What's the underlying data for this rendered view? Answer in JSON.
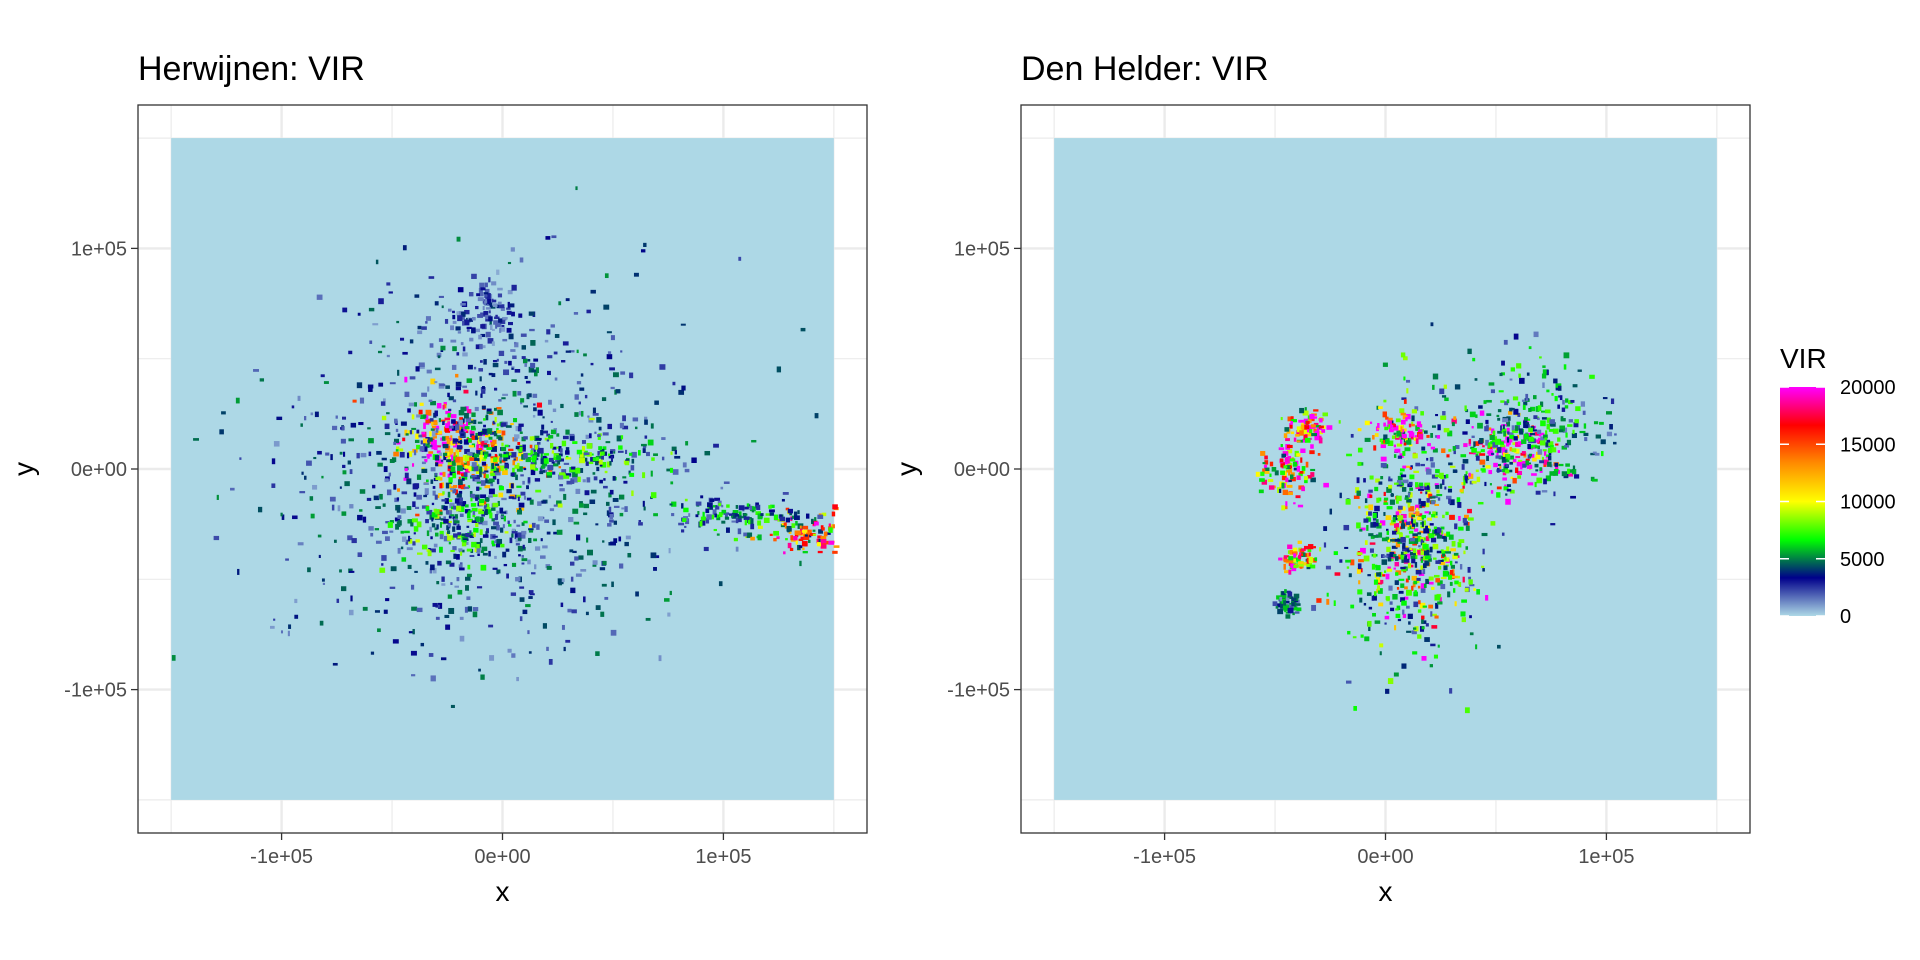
{
  "colors": {
    "panel_background": "#ffffff",
    "grid": "#ebebeb",
    "border": "#333333",
    "raster_background": "#add8e6",
    "tick_text": "#4d4d4d"
  },
  "legend": {
    "title": "VIR",
    "range": [
      0,
      20000
    ],
    "breaks": [
      0,
      5000,
      10000,
      15000,
      20000
    ],
    "labels": [
      "0",
      "5000",
      "10000",
      "15000",
      "20000"
    ],
    "gradient_colors": [
      "#add8e6",
      "#00008b",
      "#00ff00",
      "#ffff00",
      "#ff8c00",
      "#ff0000",
      "#ff00ff"
    ]
  },
  "chart_data": [
    {
      "type": "heatmap",
      "title": "Herwijnen: VIR",
      "xlabel": "x",
      "ylabel": "y",
      "xlim": [
        -165000,
        165000
      ],
      "ylim": [
        -165000,
        165000
      ],
      "raster_extent": [
        -150000,
        150000
      ],
      "x_ticks": [
        -100000,
        0,
        100000
      ],
      "x_tick_labels": [
        "-1e+05",
        "0e+00",
        "1e+05"
      ],
      "y_ticks": [
        100000,
        0,
        -100000
      ],
      "y_tick_labels": [
        "1e+05",
        "0e+00",
        "-1e+05"
      ],
      "grid": true,
      "hotspots": [
        {
          "x": -25000,
          "y": 15000,
          "sx": 12000,
          "sy": 9000,
          "value": 18000
        },
        {
          "x": -10000,
          "y": 5000,
          "sx": 15000,
          "sy": 12000,
          "value": 11000
        },
        {
          "x": -5000,
          "y": 0,
          "sx": 45000,
          "sy": 40000,
          "value": 3500
        },
        {
          "x": 30000,
          "y": 5000,
          "sx": 22000,
          "sy": 6000,
          "value": 6000
        },
        {
          "x": 140000,
          "y": -28000,
          "sx": 12000,
          "sy": 5000,
          "value": 13000
        },
        {
          "x": 100000,
          "y": -20000,
          "sx": 16000,
          "sy": 4000,
          "value": 5000
        },
        {
          "x": -10000,
          "y": 70000,
          "sx": 8000,
          "sy": 8000,
          "value": 2500
        },
        {
          "x": -20000,
          "y": -25000,
          "sx": 15000,
          "sy": 8000,
          "value": 6000
        }
      ]
    },
    {
      "type": "heatmap",
      "title": "Den Helder: VIR",
      "xlabel": "x",
      "ylabel": "y",
      "xlim": [
        -165000,
        165000
      ],
      "ylim": [
        -165000,
        165000
      ],
      "raster_extent": [
        -150000,
        150000
      ],
      "x_ticks": [
        -100000,
        0,
        100000
      ],
      "x_tick_labels": [
        "-1e+05",
        "0e+00",
        "1e+05"
      ],
      "y_ticks": [
        100000,
        0,
        -100000
      ],
      "y_tick_labels": [
        "1e+05",
        "0e+00",
        "-1e+05"
      ],
      "grid": true,
      "hotspots": [
        {
          "x": 12000,
          "y": -32000,
          "sx": 12000,
          "sy": 18000,
          "value": 14000
        },
        {
          "x": 12000,
          "y": -25000,
          "sx": 15000,
          "sy": 28000,
          "value": 6000
        },
        {
          "x": 55000,
          "y": 10000,
          "sx": 10000,
          "sy": 9000,
          "value": 17000
        },
        {
          "x": 65000,
          "y": 20000,
          "sx": 16000,
          "sy": 16000,
          "value": 5000
        },
        {
          "x": 5000,
          "y": 18000,
          "sx": 6000,
          "sy": 5000,
          "value": 16000
        },
        {
          "x": -35000,
          "y": 20000,
          "sx": 5000,
          "sy": 3000,
          "value": 17000
        },
        {
          "x": -45000,
          "y": 0,
          "sx": 6000,
          "sy": 8000,
          "value": 14000
        },
        {
          "x": -40000,
          "y": -40000,
          "sx": 4000,
          "sy": 3000,
          "value": 15000
        },
        {
          "x": -45000,
          "y": -60000,
          "sx": 3000,
          "sy": 3000,
          "value": 4000
        }
      ]
    }
  ]
}
